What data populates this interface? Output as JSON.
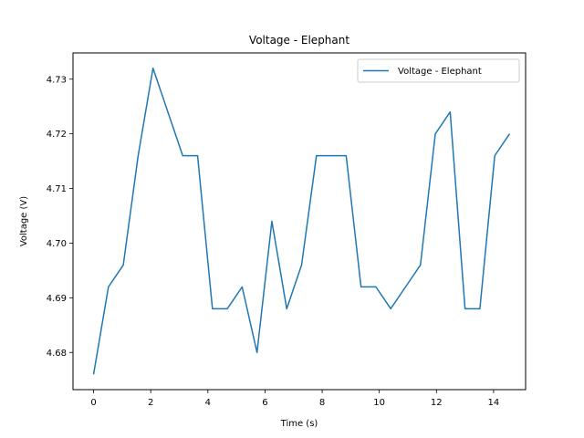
{
  "chart_data": {
    "type": "line",
    "title": "Voltage - Elephant",
    "xlabel": "Time (s)",
    "ylabel": "Voltage (V)",
    "xlim": [
      -0.72,
      15.12
    ],
    "ylim": [
      4.6732,
      4.7348
    ],
    "xticks": [
      0,
      2,
      4,
      6,
      8,
      10,
      12,
      14
    ],
    "yticks": [
      4.68,
      4.69,
      4.7,
      4.71,
      4.72,
      4.73
    ],
    "xtick_labels": [
      "0",
      "2",
      "4",
      "6",
      "8",
      "10",
      "12",
      "14"
    ],
    "ytick_labels": [
      "4.68",
      "4.69",
      "4.70",
      "4.71",
      "4.72",
      "4.73"
    ],
    "grid": false,
    "legend": "top-right",
    "series": [
      {
        "name": "Voltage - Elephant",
        "color": "#1f77b4",
        "x": [
          0,
          0.52,
          1.04,
          1.56,
          2.08,
          2.6,
          3.12,
          3.64,
          4.16,
          4.68,
          5.2,
          5.72,
          6.24,
          6.76,
          7.28,
          7.8,
          8.32,
          8.84,
          9.36,
          9.88,
          10.4,
          10.92,
          11.44,
          11.96,
          12.48,
          13.0,
          13.52,
          14.04,
          14.56
        ],
        "y": [
          4.676,
          4.692,
          4.696,
          4.716,
          4.732,
          4.724,
          4.716,
          4.716,
          4.688,
          4.688,
          4.692,
          4.68,
          4.704,
          4.688,
          4.696,
          4.716,
          4.716,
          4.716,
          4.692,
          4.692,
          4.688,
          4.692,
          4.696,
          4.72,
          4.724,
          4.688,
          4.688,
          4.716,
          4.72
        ]
      }
    ]
  }
}
